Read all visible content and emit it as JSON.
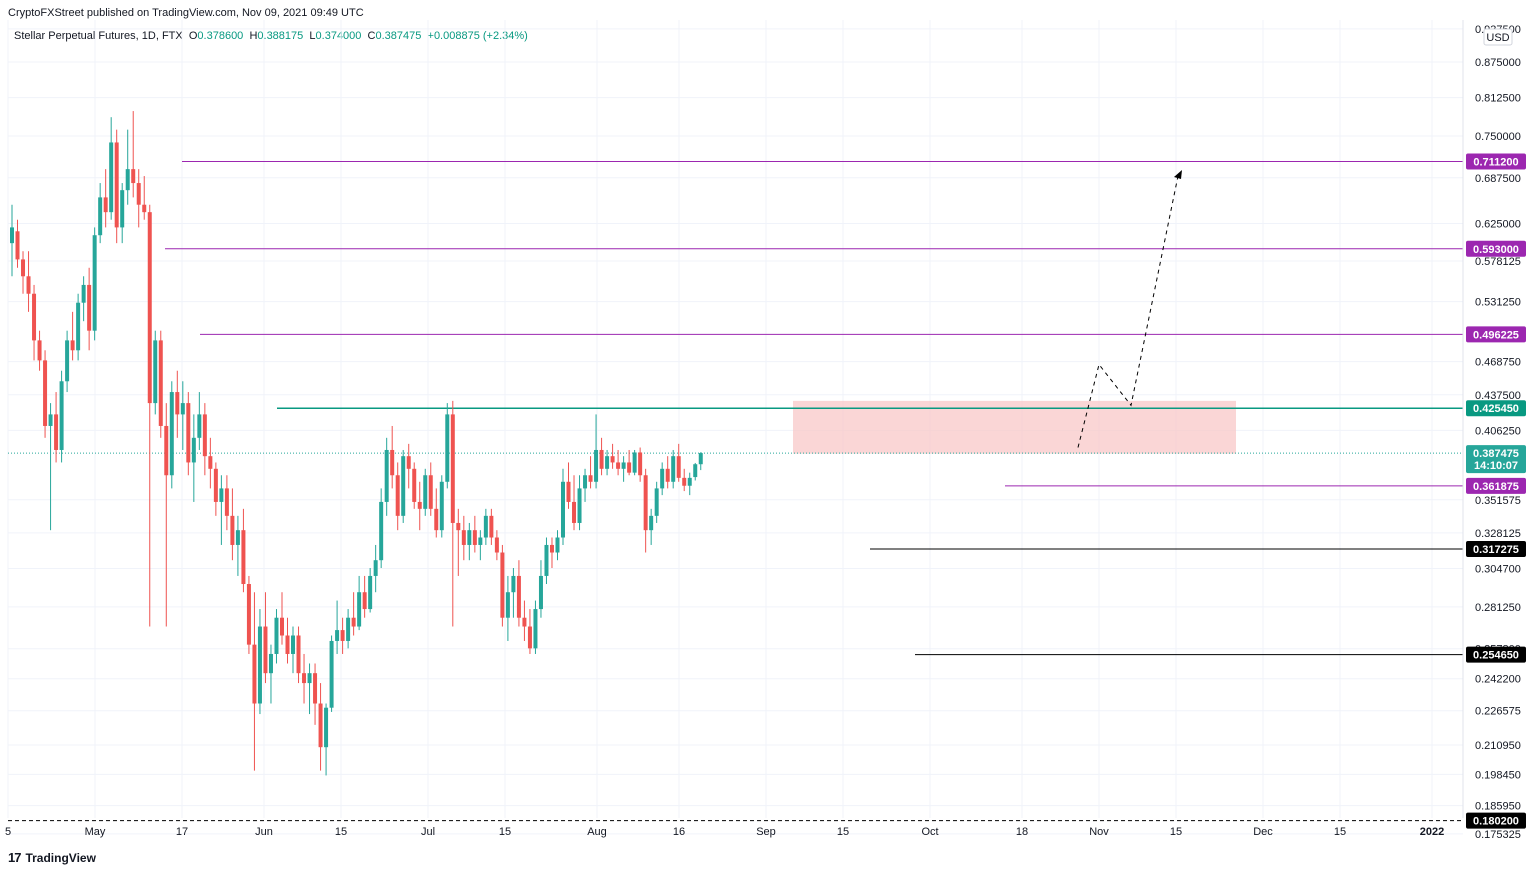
{
  "header": {
    "publisher": "CryptoFXStreet published on TradingView.com, Nov 09, 2021 09:49 UTC"
  },
  "ohlc": {
    "symbol": "Stellar Perpetual Futures, 1D, FTX",
    "o_label": "O",
    "o": "0.378600",
    "h_label": "H",
    "h": "0.388175",
    "l_label": "L",
    "l": "0.374000",
    "c_label": "C",
    "c": "0.387475",
    "change": "+0.008875 (+2.34%)"
  },
  "footer": {
    "logo_glyph": "17",
    "brand": "TradingView"
  },
  "colors": {
    "up": "#26a69a",
    "down": "#ef5350",
    "magenta": "#9c27b0",
    "teal": "#089981",
    "black": "#000000",
    "zone": "#f8c8c8",
    "grid": "#f0f3fa"
  },
  "chart_data": {
    "type": "candlestick",
    "currency": "USD",
    "y_ticks": [
      "0.937500",
      "0.875000",
      "0.812500",
      "0.750000",
      "0.687500",
      "0.625000",
      "0.578125",
      "0.531250",
      "0.468750",
      "0.437500",
      "0.406250",
      "0.351575",
      "0.328125",
      "0.304700",
      "0.281250",
      "0.257800",
      "0.242200",
      "0.226575",
      "0.210950",
      "0.198450",
      "0.185950",
      "0.175325"
    ],
    "x_ticks": [
      "5",
      "May",
      "17",
      "Jun",
      "15",
      "Jul",
      "15",
      "Aug",
      "16",
      "Sep",
      "15",
      "Oct",
      "18",
      "Nov",
      "15",
      "Dec",
      "15",
      "2022"
    ],
    "ylim": [
      0.17,
      0.94
    ],
    "levels": [
      {
        "value": 0.7112,
        "label": "0.711200",
        "color": "#9c27b0",
        "style": "solid"
      },
      {
        "value": 0.593,
        "label": "0.593000",
        "color": "#9c27b0",
        "style": "solid"
      },
      {
        "value": 0.496225,
        "label": "0.496225",
        "color": "#9c27b0",
        "style": "solid"
      },
      {
        "value": 0.42545,
        "label": "0.425450",
        "color": "#089981",
        "style": "solid"
      },
      {
        "value": 0.361875,
        "label": "0.361875",
        "color": "#9c27b0",
        "style": "solid"
      },
      {
        "value": 0.317275,
        "label": "0.317275",
        "color": "#000000",
        "style": "solid"
      },
      {
        "value": 0.25465,
        "label": "0.254650",
        "color": "#000000",
        "style": "solid"
      },
      {
        "value": 0.1802,
        "label": "0.180200",
        "color": "#000000",
        "style": "dashed"
      }
    ],
    "current": {
      "value": 0.387475,
      "label": "0.387475",
      "countdown": "14:10:07"
    },
    "supply_zone": [
      0.387,
      0.432
    ],
    "projection_path": [
      0.392,
      0.466,
      0.428,
      0.69
    ],
    "candles": [
      {
        "o": 0.6,
        "h": 0.65,
        "l": 0.56,
        "c": 0.62
      },
      {
        "o": 0.615,
        "h": 0.63,
        "l": 0.57,
        "c": 0.58
      },
      {
        "o": 0.58,
        "h": 0.59,
        "l": 0.54,
        "c": 0.56
      },
      {
        "o": 0.56,
        "h": 0.59,
        "l": 0.52,
        "c": 0.54
      },
      {
        "o": 0.54,
        "h": 0.55,
        "l": 0.47,
        "c": 0.49
      },
      {
        "o": 0.49,
        "h": 0.5,
        "l": 0.46,
        "c": 0.47
      },
      {
        "o": 0.47,
        "h": 0.48,
        "l": 0.4,
        "c": 0.41
      },
      {
        "o": 0.41,
        "h": 0.43,
        "l": 0.33,
        "c": 0.42
      },
      {
        "o": 0.42,
        "h": 0.44,
        "l": 0.38,
        "c": 0.39
      },
      {
        "o": 0.39,
        "h": 0.46,
        "l": 0.38,
        "c": 0.45
      },
      {
        "o": 0.45,
        "h": 0.5,
        "l": 0.44,
        "c": 0.49
      },
      {
        "o": 0.49,
        "h": 0.52,
        "l": 0.47,
        "c": 0.48
      },
      {
        "o": 0.48,
        "h": 0.54,
        "l": 0.47,
        "c": 0.53
      },
      {
        "o": 0.53,
        "h": 0.56,
        "l": 0.51,
        "c": 0.55
      },
      {
        "o": 0.55,
        "h": 0.57,
        "l": 0.48,
        "c": 0.5
      },
      {
        "o": 0.5,
        "h": 0.62,
        "l": 0.49,
        "c": 0.61
      },
      {
        "o": 0.61,
        "h": 0.68,
        "l": 0.6,
        "c": 0.66
      },
      {
        "o": 0.66,
        "h": 0.7,
        "l": 0.62,
        "c": 0.64
      },
      {
        "o": 0.64,
        "h": 0.78,
        "l": 0.63,
        "c": 0.74
      },
      {
        "o": 0.74,
        "h": 0.76,
        "l": 0.6,
        "c": 0.62
      },
      {
        "o": 0.62,
        "h": 0.68,
        "l": 0.6,
        "c": 0.67
      },
      {
        "o": 0.67,
        "h": 0.76,
        "l": 0.65,
        "c": 0.7
      },
      {
        "o": 0.7,
        "h": 0.79,
        "l": 0.66,
        "c": 0.68
      },
      {
        "o": 0.68,
        "h": 0.7,
        "l": 0.62,
        "c": 0.65
      },
      {
        "o": 0.65,
        "h": 0.69,
        "l": 0.63,
        "c": 0.64
      },
      {
        "o": 0.64,
        "h": 0.65,
        "l": 0.27,
        "c": 0.43
      },
      {
        "o": 0.43,
        "h": 0.5,
        "l": 0.42,
        "c": 0.49
      },
      {
        "o": 0.49,
        "h": 0.5,
        "l": 0.4,
        "c": 0.41
      },
      {
        "o": 0.41,
        "h": 0.43,
        "l": 0.27,
        "c": 0.37
      },
      {
        "o": 0.37,
        "h": 0.45,
        "l": 0.36,
        "c": 0.44
      },
      {
        "o": 0.44,
        "h": 0.46,
        "l": 0.4,
        "c": 0.42
      },
      {
        "o": 0.42,
        "h": 0.45,
        "l": 0.39,
        "c": 0.43
      },
      {
        "o": 0.43,
        "h": 0.44,
        "l": 0.37,
        "c": 0.38
      },
      {
        "o": 0.38,
        "h": 0.42,
        "l": 0.35,
        "c": 0.4
      },
      {
        "o": 0.4,
        "h": 0.44,
        "l": 0.39,
        "c": 0.42
      },
      {
        "o": 0.42,
        "h": 0.43,
        "l": 0.37,
        "c": 0.385
      },
      {
        "o": 0.385,
        "h": 0.4,
        "l": 0.36,
        "c": 0.375
      },
      {
        "o": 0.375,
        "h": 0.38,
        "l": 0.34,
        "c": 0.35
      },
      {
        "o": 0.35,
        "h": 0.37,
        "l": 0.32,
        "c": 0.36
      },
      {
        "o": 0.36,
        "h": 0.37,
        "l": 0.33,
        "c": 0.34
      },
      {
        "o": 0.34,
        "h": 0.36,
        "l": 0.31,
        "c": 0.32
      },
      {
        "o": 0.32,
        "h": 0.34,
        "l": 0.3,
        "c": 0.33
      },
      {
        "o": 0.33,
        "h": 0.345,
        "l": 0.29,
        "c": 0.295
      },
      {
        "o": 0.295,
        "h": 0.3,
        "l": 0.255,
        "c": 0.26
      },
      {
        "o": 0.26,
        "h": 0.29,
        "l": 0.2,
        "c": 0.23
      },
      {
        "o": 0.23,
        "h": 0.28,
        "l": 0.225,
        "c": 0.27
      },
      {
        "o": 0.27,
        "h": 0.29,
        "l": 0.24,
        "c": 0.245
      },
      {
        "o": 0.245,
        "h": 0.26,
        "l": 0.23,
        "c": 0.255
      },
      {
        "o": 0.255,
        "h": 0.28,
        "l": 0.25,
        "c": 0.275
      },
      {
        "o": 0.275,
        "h": 0.29,
        "l": 0.26,
        "c": 0.265
      },
      {
        "o": 0.265,
        "h": 0.275,
        "l": 0.25,
        "c": 0.255
      },
      {
        "o": 0.255,
        "h": 0.27,
        "l": 0.245,
        "c": 0.265
      },
      {
        "o": 0.265,
        "h": 0.27,
        "l": 0.24,
        "c": 0.245
      },
      {
        "o": 0.245,
        "h": 0.255,
        "l": 0.23,
        "c": 0.24
      },
      {
        "o": 0.24,
        "h": 0.25,
        "l": 0.225,
        "c": 0.245
      },
      {
        "o": 0.245,
        "h": 0.25,
        "l": 0.22,
        "c": 0.23
      },
      {
        "o": 0.23,
        "h": 0.24,
        "l": 0.2,
        "c": 0.21
      },
      {
        "o": 0.21,
        "h": 0.23,
        "l": 0.198,
        "c": 0.228
      },
      {
        "o": 0.228,
        "h": 0.265,
        "l": 0.226,
        "c": 0.262
      },
      {
        "o": 0.262,
        "h": 0.285,
        "l": 0.255,
        "c": 0.268
      },
      {
        "o": 0.268,
        "h": 0.275,
        "l": 0.255,
        "c": 0.262
      },
      {
        "o": 0.262,
        "h": 0.28,
        "l": 0.258,
        "c": 0.275
      },
      {
        "o": 0.275,
        "h": 0.29,
        "l": 0.265,
        "c": 0.27
      },
      {
        "o": 0.27,
        "h": 0.3,
        "l": 0.268,
        "c": 0.29
      },
      {
        "o": 0.29,
        "h": 0.3,
        "l": 0.275,
        "c": 0.28
      },
      {
        "o": 0.28,
        "h": 0.305,
        "l": 0.278,
        "c": 0.3
      },
      {
        "o": 0.3,
        "h": 0.32,
        "l": 0.29,
        "c": 0.31
      },
      {
        "o": 0.31,
        "h": 0.36,
        "l": 0.305,
        "c": 0.35
      },
      {
        "o": 0.35,
        "h": 0.4,
        "l": 0.34,
        "c": 0.39
      },
      {
        "o": 0.39,
        "h": 0.41,
        "l": 0.36,
        "c": 0.37
      },
      {
        "o": 0.37,
        "h": 0.38,
        "l": 0.33,
        "c": 0.34
      },
      {
        "o": 0.34,
        "h": 0.39,
        "l": 0.335,
        "c": 0.385
      },
      {
        "o": 0.385,
        "h": 0.395,
        "l": 0.36,
        "c": 0.375
      },
      {
        "o": 0.375,
        "h": 0.38,
        "l": 0.345,
        "c": 0.35
      },
      {
        "o": 0.35,
        "h": 0.365,
        "l": 0.33,
        "c": 0.345
      },
      {
        "o": 0.345,
        "h": 0.375,
        "l": 0.34,
        "c": 0.37
      },
      {
        "o": 0.37,
        "h": 0.38,
        "l": 0.34,
        "c": 0.345
      },
      {
        "o": 0.345,
        "h": 0.36,
        "l": 0.325,
        "c": 0.33
      },
      {
        "o": 0.33,
        "h": 0.37,
        "l": 0.325,
        "c": 0.365
      },
      {
        "o": 0.365,
        "h": 0.43,
        "l": 0.36,
        "c": 0.42
      },
      {
        "o": 0.42,
        "h": 0.432,
        "l": 0.27,
        "c": 0.335
      },
      {
        "o": 0.335,
        "h": 0.345,
        "l": 0.3,
        "c": 0.33
      },
      {
        "o": 0.33,
        "h": 0.34,
        "l": 0.31,
        "c": 0.32
      },
      {
        "o": 0.32,
        "h": 0.335,
        "l": 0.31,
        "c": 0.33
      },
      {
        "o": 0.33,
        "h": 0.34,
        "l": 0.315,
        "c": 0.32
      },
      {
        "o": 0.32,
        "h": 0.33,
        "l": 0.31,
        "c": 0.325
      },
      {
        "o": 0.325,
        "h": 0.345,
        "l": 0.32,
        "c": 0.34
      },
      {
        "o": 0.34,
        "h": 0.345,
        "l": 0.32,
        "c": 0.325
      },
      {
        "o": 0.325,
        "h": 0.33,
        "l": 0.31,
        "c": 0.315
      },
      {
        "o": 0.315,
        "h": 0.32,
        "l": 0.27,
        "c": 0.275
      },
      {
        "o": 0.275,
        "h": 0.3,
        "l": 0.262,
        "c": 0.29
      },
      {
        "o": 0.29,
        "h": 0.305,
        "l": 0.275,
        "c": 0.3
      },
      {
        "o": 0.3,
        "h": 0.31,
        "l": 0.27,
        "c": 0.275
      },
      {
        "o": 0.275,
        "h": 0.285,
        "l": 0.262,
        "c": 0.27
      },
      {
        "o": 0.27,
        "h": 0.28,
        "l": 0.255,
        "c": 0.258
      },
      {
        "o": 0.258,
        "h": 0.285,
        "l": 0.255,
        "c": 0.28
      },
      {
        "o": 0.28,
        "h": 0.31,
        "l": 0.275,
        "c": 0.3
      },
      {
        "o": 0.3,
        "h": 0.325,
        "l": 0.295,
        "c": 0.32
      },
      {
        "o": 0.32,
        "h": 0.325,
        "l": 0.305,
        "c": 0.315
      },
      {
        "o": 0.315,
        "h": 0.33,
        "l": 0.31,
        "c": 0.325
      },
      {
        "o": 0.325,
        "h": 0.375,
        "l": 0.32,
        "c": 0.365
      },
      {
        "o": 0.365,
        "h": 0.38,
        "l": 0.345,
        "c": 0.35
      },
      {
        "o": 0.35,
        "h": 0.37,
        "l": 0.33,
        "c": 0.335
      },
      {
        "o": 0.335,
        "h": 0.37,
        "l": 0.33,
        "c": 0.36
      },
      {
        "o": 0.36,
        "h": 0.375,
        "l": 0.35,
        "c": 0.37
      },
      {
        "o": 0.37,
        "h": 0.385,
        "l": 0.36,
        "c": 0.365
      },
      {
        "o": 0.365,
        "h": 0.42,
        "l": 0.36,
        "c": 0.39
      },
      {
        "o": 0.39,
        "h": 0.4,
        "l": 0.37,
        "c": 0.375
      },
      {
        "o": 0.375,
        "h": 0.39,
        "l": 0.37,
        "c": 0.385
      },
      {
        "o": 0.385,
        "h": 0.395,
        "l": 0.375,
        "c": 0.38
      },
      {
        "o": 0.38,
        "h": 0.39,
        "l": 0.37,
        "c": 0.375
      },
      {
        "o": 0.375,
        "h": 0.385,
        "l": 0.365,
        "c": 0.38
      },
      {
        "o": 0.38,
        "h": 0.39,
        "l": 0.37,
        "c": 0.372
      },
      {
        "o": 0.372,
        "h": 0.39,
        "l": 0.37,
        "c": 0.388
      },
      {
        "o": 0.388,
        "h": 0.392,
        "l": 0.365,
        "c": 0.37
      },
      {
        "o": 0.37,
        "h": 0.375,
        "l": 0.315,
        "c": 0.33
      },
      {
        "o": 0.33,
        "h": 0.345,
        "l": 0.32,
        "c": 0.34
      },
      {
        "o": 0.34,
        "h": 0.365,
        "l": 0.335,
        "c": 0.36
      },
      {
        "o": 0.36,
        "h": 0.38,
        "l": 0.355,
        "c": 0.375
      },
      {
        "o": 0.375,
        "h": 0.385,
        "l": 0.36,
        "c": 0.365
      },
      {
        "o": 0.365,
        "h": 0.39,
        "l": 0.36,
        "c": 0.385
      },
      {
        "o": 0.385,
        "h": 0.395,
        "l": 0.365,
        "c": 0.368
      },
      {
        "o": 0.368,
        "h": 0.375,
        "l": 0.358,
        "c": 0.362
      },
      {
        "o": 0.362,
        "h": 0.372,
        "l": 0.355,
        "c": 0.368
      },
      {
        "o": 0.3686,
        "h": 0.3796,
        "l": 0.366,
        "c": 0.3786
      },
      {
        "o": 0.3786,
        "h": 0.388175,
        "l": 0.374,
        "c": 0.387475
      }
    ]
  }
}
